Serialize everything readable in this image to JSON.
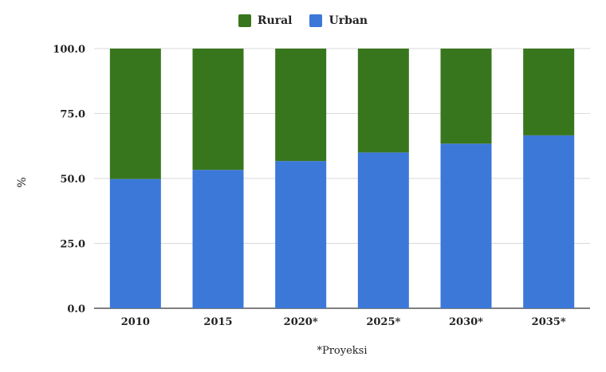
{
  "chart_data": {
    "type": "bar",
    "stacked": true,
    "categories": [
      "2010",
      "2015",
      "2020*",
      "2025*",
      "2030*",
      "2035*"
    ],
    "series": [
      {
        "name": "Urban",
        "color": "#3c78d8",
        "values": [
          49.8,
          53.3,
          56.7,
          60.0,
          63.4,
          66.6
        ]
      },
      {
        "name": "Rural",
        "color": "#38761d",
        "values": [
          50.2,
          46.7,
          43.3,
          40.0,
          36.6,
          33.4
        ]
      }
    ],
    "ylabel": "%",
    "xlabel": "*Proyeksi",
    "ylim": [
      0,
      100
    ],
    "yticks": [
      "0.0",
      "25.0",
      "50.0",
      "75.0",
      "100.0"
    ],
    "grid": true,
    "legend_position": "top-center"
  }
}
